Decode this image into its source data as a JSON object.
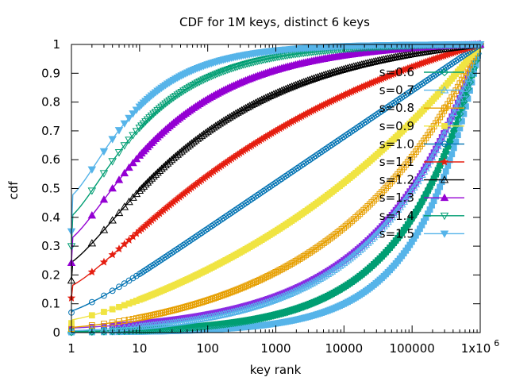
{
  "chart_data": {
    "type": "line",
    "title": "CDF for 1M keys, distinct 6 keys",
    "xlabel": "key rank",
    "ylabel": "cdf",
    "xscale": "log",
    "xlim": [
      1,
      1000000
    ],
    "ylim": [
      0,
      1
    ],
    "grid": false,
    "legend_placement": "right",
    "x_ticks": [
      {
        "value": 1,
        "label": "1"
      },
      {
        "value": 10,
        "label": "10"
      },
      {
        "value": 100,
        "label": "100"
      },
      {
        "value": 1000,
        "label": "1000"
      },
      {
        "value": 10000,
        "label": "10000"
      },
      {
        "value": 100000,
        "label": "100000"
      },
      {
        "value": 1000000,
        "label": "1x10",
        "sup": "6"
      }
    ],
    "y_ticks": [
      {
        "value": 0,
        "label": "0"
      },
      {
        "value": 0.1,
        "label": "0.1"
      },
      {
        "value": 0.2,
        "label": "0.2"
      },
      {
        "value": 0.3,
        "label": "0.3"
      },
      {
        "value": 0.4,
        "label": "0.4"
      },
      {
        "value": 0.5,
        "label": "0.5"
      },
      {
        "value": 0.6,
        "label": "0.6"
      },
      {
        "value": 0.7,
        "label": "0.7"
      },
      {
        "value": 0.8,
        "label": "0.8"
      },
      {
        "value": 0.9,
        "label": "0.9"
      },
      {
        "value": 1,
        "label": "1"
      }
    ],
    "series": [
      {
        "name": "s=0.6",
        "color": "#009e73",
        "marker": "diamond-open"
      },
      {
        "name": "s=0.7",
        "color": "#56b4e9",
        "marker": "triangle-open"
      },
      {
        "name": "s=0.8",
        "color": "#e69f00",
        "marker": "square-open"
      },
      {
        "name": "s=0.9",
        "color": "#f0e442",
        "marker": "square"
      },
      {
        "name": "s=1.0",
        "color": "#0072b2",
        "marker": "circle-open"
      },
      {
        "name": "s=1.1",
        "color": "#e51e10",
        "marker": "star"
      },
      {
        "name": "s=1.2",
        "color": "#000000",
        "marker": "triangle-open"
      },
      {
        "name": "s=1.3",
        "color": "#9400d3",
        "marker": "triangle"
      },
      {
        "name": "s=1.4",
        "color": "#009e73",
        "marker": "triangle-down-open"
      },
      {
        "name": "s=1.5",
        "color": "#56b4e9",
        "marker": "triangle-down"
      }
    ],
    "extra_series": [
      {
        "name": "",
        "color": "#8a2be2",
        "exponent": 0.3
      },
      {
        "name": "",
        "color": "#009e73",
        "exponent": 0.4
      },
      {
        "name": "",
        "color": "#56b4e9",
        "exponent": 0.5
      }
    ]
  }
}
